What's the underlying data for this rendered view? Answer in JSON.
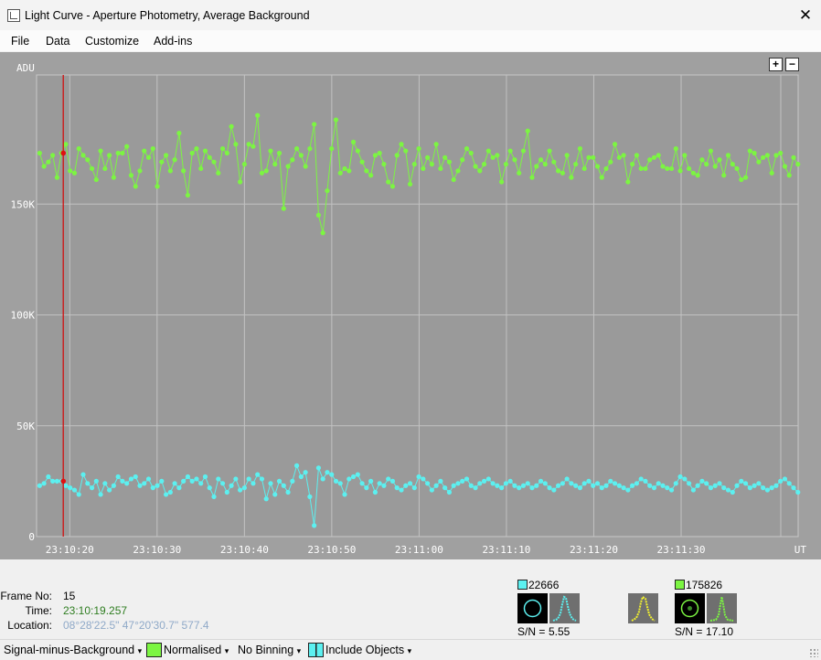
{
  "window": {
    "title": "Light Curve - Aperture Photometry, Average Background",
    "close_symbol": "✕"
  },
  "menu": [
    "File",
    "Data",
    "Customize",
    "Add-ins"
  ],
  "zoom": {
    "plus": "+",
    "minus": "−"
  },
  "chart_data": {
    "type": "line",
    "ylabel": "ADU",
    "xlabel": "UT",
    "ylim": [
      0,
      200000
    ],
    "y_ticks": [
      "0",
      "50K",
      "100K",
      "150K"
    ],
    "x_ticks": [
      "23:10:20",
      "23:10:30",
      "23:10:40",
      "23:10:50",
      "23:11:00",
      "23:11:10",
      "23:11:20",
      "23:11:30"
    ],
    "x_tick_seconds": [
      20,
      30,
      40,
      50,
      60,
      70,
      80,
      90
    ],
    "xlim_seconds": [
      16.2,
      103.4
    ],
    "cursor_seconds": 19.257,
    "grid": true,
    "series": [
      {
        "color": "#7cf542",
        "x_start_seconds": 16.55,
        "x_step_seconds": 0.499,
        "values": [
          173000,
          167000,
          169000,
          172000,
          162000,
          173000,
          177000,
          165000,
          164000,
          175000,
          172000,
          170000,
          166000,
          161000,
          174000,
          166000,
          172000,
          162000,
          173000,
          173000,
          176000,
          163000,
          158000,
          165000,
          174000,
          171000,
          175000,
          158000,
          169000,
          172000,
          165000,
          170000,
          182000,
          165000,
          154000,
          173000,
          175000,
          166000,
          174000,
          171000,
          169000,
          164000,
          175000,
          173000,
          185000,
          177000,
          160000,
          168000,
          177000,
          176000,
          190000,
          164000,
          165000,
          174000,
          168000,
          173000,
          148000,
          167000,
          170000,
          175000,
          172000,
          167000,
          175000,
          186000,
          145000,
          137000,
          156000,
          175000,
          188000,
          164000,
          166000,
          165000,
          178000,
          174000,
          169000,
          165000,
          163000,
          172000,
          173000,
          168000,
          160000,
          158000,
          172000,
          177000,
          174000,
          159000,
          168000,
          175000,
          166000,
          171000,
          168000,
          177000,
          166000,
          171000,
          169000,
          161000,
          165000,
          170000,
          175000,
          173000,
          167000,
          165000,
          168000,
          174000,
          171000,
          172000,
          160000,
          168000,
          174000,
          170000,
          164000,
          174000,
          183000,
          162000,
          167000,
          170000,
          168000,
          174000,
          169000,
          165000,
          164000,
          172000,
          162000,
          168000,
          175000,
          166000,
          171000,
          171000,
          167000,
          162000,
          166000,
          169000,
          177000,
          171000,
          172000,
          160000,
          168000,
          172000,
          166000,
          166000,
          170000,
          171000,
          172000,
          167000,
          166000,
          166000,
          175000,
          165000,
          172000,
          166000,
          164000,
          163000,
          170000,
          168000,
          174000,
          167000,
          170000,
          163000,
          172000,
          168000,
          166000,
          161000,
          162000,
          174000,
          173000,
          169000,
          171000,
          172000,
          164000,
          172000,
          173000,
          167000,
          163000,
          171000,
          168000,
          167000,
          161000,
          175000,
          171000,
          164000,
          172000,
          168000,
          165000,
          171000,
          173000,
          163000,
          173000,
          167000,
          176000,
          174000,
          172000,
          165000,
          163000,
          172000,
          170000,
          175000,
          171000,
          166000,
          170000,
          169000,
          160000,
          172000,
          164000,
          175000,
          172000,
          176000,
          163000,
          162000,
          173000,
          162000,
          165000,
          175000,
          172000,
          169000,
          171000,
          168000,
          177000,
          164000,
          162000,
          165000,
          170000,
          173000,
          175000,
          171000,
          158000,
          168000,
          166000,
          172000,
          174000,
          170000,
          164000,
          173000,
          172000,
          167000,
          163000,
          174000,
          170000,
          165000,
          171000,
          168000,
          173000,
          170000,
          167000,
          168000,
          171000,
          169000,
          164000,
          172000,
          169000,
          170000,
          169000,
          163000,
          171000,
          168000,
          173000,
          166000,
          170000,
          175000,
          174000,
          164000,
          160000,
          171000,
          173000,
          167000,
          171000,
          169000,
          163000,
          168000,
          172000,
          166000,
          175000,
          170000,
          169000,
          161000,
          171000,
          174000,
          168000,
          163000,
          172000,
          171000,
          169000,
          164000,
          168000,
          166000,
          172000,
          170000,
          174000,
          167000,
          172000,
          165000,
          171000,
          168000,
          166000,
          170000,
          169000,
          174000,
          167000,
          171000,
          163000,
          170000,
          172000,
          168000,
          173000,
          169000,
          166000,
          171000,
          165000,
          170000,
          176000,
          169000,
          164000,
          158000,
          171000,
          162000,
          172000,
          168000,
          174000,
          167000,
          163000,
          170000,
          171000,
          166000,
          169000,
          167000,
          172000,
          170000,
          167000,
          171000,
          172000,
          163000,
          168000,
          170000,
          175000,
          165000,
          173000,
          166000,
          170000,
          170000,
          172000,
          169000,
          168000,
          169000,
          172000,
          168000,
          170000,
          167000,
          171000,
          173000,
          169000,
          172000,
          166000,
          170000,
          168000,
          169000,
          168000,
          171000,
          165000,
          174000,
          170000,
          158000,
          176000,
          175000,
          173000,
          170000,
          172000,
          163000,
          167000,
          170000,
          173000,
          170000
        ]
      },
      {
        "color": "#5cf0f0",
        "x_start_seconds": 16.55,
        "x_step_seconds": 0.499,
        "values": [
          23000,
          24000,
          27000,
          25000,
          25000,
          25000,
          23000,
          22000,
          21000,
          19000,
          28000,
          24000,
          22000,
          25000,
          19000,
          24000,
          21000,
          23000,
          27000,
          25000,
          24000,
          26000,
          27000,
          23000,
          24000,
          26000,
          22000,
          23000,
          25000,
          19000,
          20000,
          24000,
          22000,
          25000,
          27000,
          25000,
          26000,
          24000,
          27000,
          22000,
          18000,
          26000,
          24000,
          20000,
          23000,
          26000,
          21000,
          22000,
          26000,
          24000,
          28000,
          26000,
          17000,
          24000,
          19000,
          25000,
          23000,
          20000,
          25000,
          32000,
          27000,
          29000,
          18000,
          5000,
          31000,
          26000,
          29000,
          28000,
          25000,
          24000,
          19000,
          26000,
          27000,
          28000,
          24000,
          22000,
          25000,
          20000,
          24000,
          23000,
          26000,
          25000,
          22000,
          21000,
          23000,
          24000,
          22000,
          27000,
          26000,
          24000,
          21000,
          23000,
          25000,
          22000,
          20000,
          23000,
          24000,
          25000,
          26000,
          23000,
          22000,
          24000,
          25000,
          26000,
          24000,
          23000,
          22000,
          24000,
          25000,
          23000,
          22000,
          23000,
          24000,
          22000,
          23000,
          25000,
          24000,
          22000,
          21000,
          23000,
          24000,
          26000,
          24000,
          23000,
          22000,
          24000,
          25000,
          23000,
          24000,
          22000,
          23000,
          25000,
          24000,
          23000,
          22000,
          21000,
          23000,
          24000,
          26000,
          25000,
          23000,
          22000,
          24000,
          23000,
          22000,
          21000,
          24000,
          27000,
          26000,
          24000,
          21000,
          23000,
          25000,
          24000,
          22000,
          23000,
          24000,
          22000,
          21000,
          20000,
          23000,
          25000,
          24000,
          22000,
          23000,
          24000,
          22000,
          21000,
          22000,
          23000,
          25000,
          26000,
          24000,
          22000,
          20000,
          22000,
          24000,
          21000,
          25000,
          23000,
          22000,
          24000,
          26000,
          23000,
          21000,
          22000,
          24000,
          22000,
          25000,
          20000,
          22000,
          24000,
          23000,
          21000,
          24000,
          20000,
          23000,
          25000,
          22000,
          21000,
          23000,
          24000,
          21000,
          20000,
          23000,
          25000,
          22000,
          24000,
          23000,
          21000,
          22000,
          24000,
          20000,
          22000,
          24000,
          23000,
          25000,
          22000,
          21000,
          23000,
          22000,
          24000,
          20000,
          23000,
          22000,
          25000,
          21000,
          24000,
          22000,
          23000,
          20000,
          22000,
          24000,
          23000,
          21000,
          22000,
          21000,
          24000,
          22000,
          23000,
          20000,
          22000,
          24000,
          21000,
          22000,
          23000,
          20000,
          21000,
          22000,
          24000,
          25000,
          26000,
          22000,
          23000,
          24000,
          22000,
          21000,
          20000,
          23000,
          24000,
          22000,
          21000,
          23000,
          24000,
          22000,
          21000,
          23000,
          22000,
          20000,
          23000,
          24000,
          21000,
          22000,
          23000,
          25000,
          24000,
          21000,
          20000,
          22000,
          23000,
          21000,
          24000,
          22000,
          25000,
          23000,
          22000,
          21000,
          23000,
          22000,
          24000,
          23000,
          21000,
          22000,
          20000,
          23000,
          22000,
          24000,
          25000,
          23000,
          21000,
          22000,
          23000,
          24000,
          22000,
          21000,
          22000,
          24000,
          23000,
          22000,
          20000,
          22000,
          23000,
          21000,
          22000,
          24000,
          23000,
          22000,
          21000,
          23000,
          22000,
          24000,
          22000,
          21000,
          23000,
          22000,
          22000,
          24000,
          21000,
          22000,
          23000,
          22000,
          20000,
          21000,
          23000,
          24000,
          22000,
          21000,
          23000,
          24000,
          22000,
          21000,
          22000,
          23000,
          21000,
          22000,
          24000,
          23000,
          22000,
          21000,
          22000,
          23000,
          21000,
          22000,
          20000,
          23000,
          21000,
          22000,
          24000,
          23000,
          21000,
          22000,
          22000,
          21000,
          23000,
          20000
        ]
      }
    ]
  },
  "info": {
    "frame_label": "Frame No:",
    "frame_value": "15",
    "time_label": "Time:",
    "time_value": "23:10:19.257",
    "location_label": "Location:",
    "location_value": "08°28'22.5\" 47°20'30.7\" 577.4"
  },
  "objects": {
    "obj1": {
      "color": "#5cf0f0",
      "value": "22666",
      "sn_label": "S/N =",
      "sn_value": "5.55"
    },
    "obj2": {
      "color": "#7cf542",
      "value": "175826",
      "sn_label": "S/N =",
      "sn_value": "17.10"
    },
    "extra_profile_color": "#f0f030"
  },
  "statusbar": {
    "mode": "Signal-minus-Background",
    "normalised": "Normalised",
    "binning": "No Binning",
    "include": "Include Objects",
    "arrow": "▾"
  }
}
